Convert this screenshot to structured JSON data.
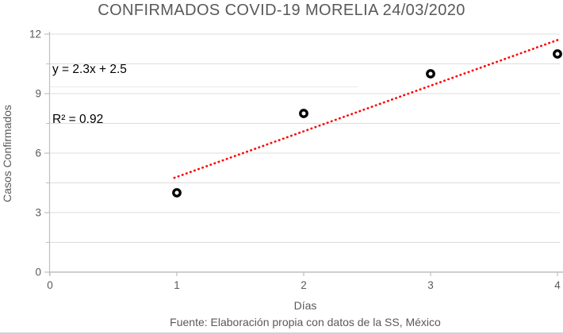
{
  "title": "CONFIRMADOS COVID-19 MORELIA 24/03/2020",
  "annotation": {
    "equation": "y = 2.3x + 2.5",
    "r_squared": "R² = 0.92"
  },
  "footer": "Fuente: Elaboración propia con datos de la SS, México",
  "chart_data": {
    "type": "scatter",
    "title": "CONFIRMADOS COVID-19 MORELIA 24/03/2020",
    "xlabel": "Días",
    "ylabel": "Casos Confirmados",
    "x": [
      1,
      2,
      3,
      4
    ],
    "y": [
      4,
      8,
      10,
      11
    ],
    "series_name": "Casos Confirmados",
    "xlim": [
      0,
      4
    ],
    "ylim": [
      0,
      12
    ],
    "x_ticks": [
      "0",
      "1",
      "2",
      "3",
      "4"
    ],
    "y_ticks": [
      "0",
      "3",
      "6",
      "9",
      "12"
    ],
    "y_tick_values": [
      0,
      3,
      6,
      9,
      12
    ],
    "x_tick_values": [
      0,
      1,
      2,
      3,
      4
    ],
    "grid": "horizontal",
    "grid_step": 1.5,
    "legend": "none",
    "trendline": {
      "type": "linear",
      "slope": 2.3,
      "intercept": 2.5,
      "equation": "y = 2.3x + 2.5",
      "r2": 0.92,
      "x_start": 0.98,
      "x_end": 4.02,
      "style": "dotted"
    },
    "marker": {
      "shape": "open-circle",
      "color": "#000000"
    },
    "colors": {
      "trendline": "#ff0000",
      "marker": "#000000",
      "grid": "#dcdcdc",
      "axis": "#bfbfbf",
      "text": "#595959",
      "annotation_text": "#000000"
    }
  }
}
